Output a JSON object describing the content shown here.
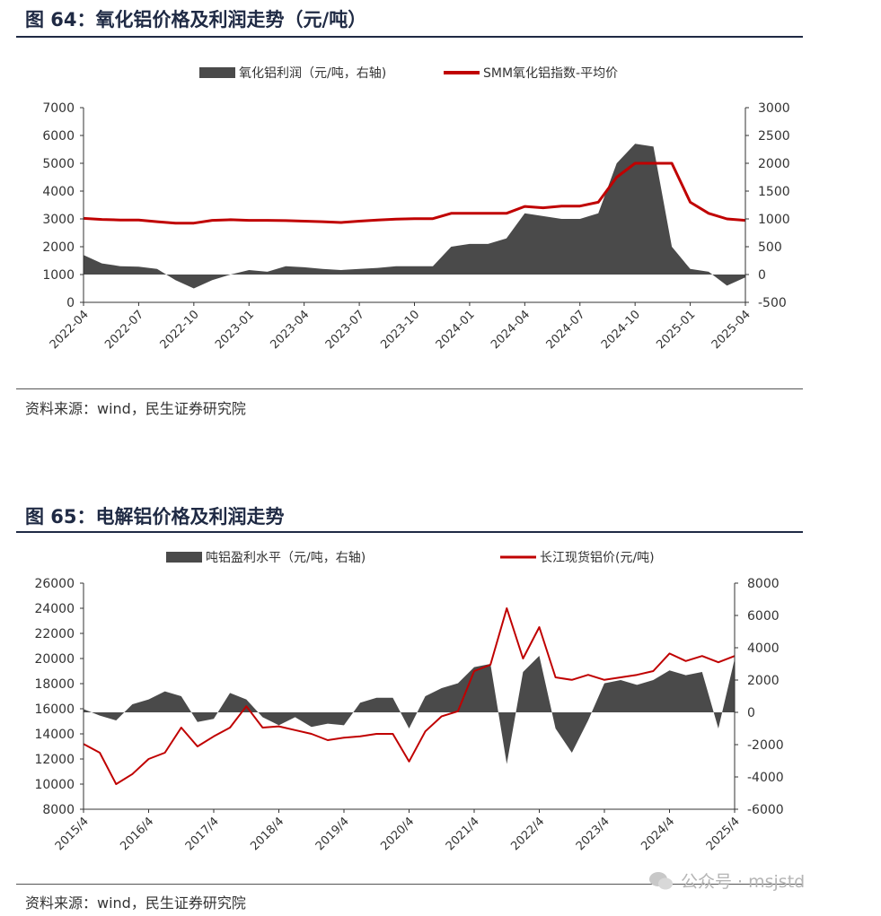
{
  "figure1": {
    "title": "图 64：氧化铝价格及利润走势（元/吨）",
    "source": "资料来源：wind，民生证券研究院"
  },
  "figure2": {
    "title": "图 65：电解铝价格及利润走势",
    "source": "资料来源：wind，民生证券研究院"
  },
  "watermark": "公众号 · msjstd",
  "colors": {
    "profit": "#4a4a4a",
    "price": "#c00000",
    "title": "#1f2a44"
  },
  "chart_data": [
    {
      "type": "area",
      "legend_position": "top",
      "grid": false,
      "series": [
        {
          "name": "氧化铝利润（元/吨，右轴)",
          "type": "area",
          "axis": "right",
          "x": [
            "2022-04",
            "2022-05",
            "2022-06",
            "2022-07",
            "2022-08",
            "2022-09",
            "2022-10",
            "2022-11",
            "2022-12",
            "2023-01",
            "2023-02",
            "2023-03",
            "2023-04",
            "2023-05",
            "2023-06",
            "2023-07",
            "2023-08",
            "2023-09",
            "2023-10",
            "2023-11",
            "2023-12",
            "2024-01",
            "2024-02",
            "2024-03",
            "2024-04",
            "2024-05",
            "2024-06",
            "2024-07",
            "2024-08",
            "2024-09",
            "2024-10",
            "2024-11",
            "2024-12",
            "2025-01",
            "2025-02",
            "2025-03",
            "2025-04"
          ],
          "values": [
            350,
            200,
            150,
            140,
            100,
            -100,
            -250,
            -100,
            0,
            80,
            50,
            150,
            130,
            100,
            80,
            100,
            120,
            150,
            150,
            150,
            500,
            550,
            550,
            650,
            1100,
            1050,
            1000,
            1000,
            1100,
            2000,
            2350,
            2300,
            500,
            100,
            50,
            -200,
            -50
          ]
        },
        {
          "name": "SMM氧化铝指数-平均价",
          "type": "line",
          "axis": "left",
          "x": [
            "2022-04",
            "2022-05",
            "2022-06",
            "2022-07",
            "2022-08",
            "2022-09",
            "2022-10",
            "2022-11",
            "2022-12",
            "2023-01",
            "2023-02",
            "2023-03",
            "2023-04",
            "2023-05",
            "2023-06",
            "2023-07",
            "2023-08",
            "2023-09",
            "2023-10",
            "2023-11",
            "2023-12",
            "2024-01",
            "2024-02",
            "2024-03",
            "2024-04",
            "2024-05",
            "2024-06",
            "2024-07",
            "2024-08",
            "2024-09",
            "2024-10",
            "2024-11",
            "2024-12",
            "2025-01",
            "2025-02",
            "2025-03",
            "2025-04"
          ],
          "values": [
            3020,
            2980,
            2960,
            2960,
            2900,
            2850,
            2850,
            2950,
            2970,
            2950,
            2950,
            2940,
            2920,
            2900,
            2870,
            2920,
            2960,
            2990,
            3010,
            3010,
            3200,
            3200,
            3200,
            3200,
            3450,
            3400,
            3460,
            3460,
            3600,
            4500,
            5000,
            5000,
            5000,
            3600,
            3200,
            3000,
            2950
          ]
        }
      ],
      "x_ticks": [
        "2022-04",
        "2022-07",
        "2022-10",
        "2023-01",
        "2023-04",
        "2023-07",
        "2023-10",
        "2024-01",
        "2024-04",
        "2024-07",
        "2024-10",
        "2025-01",
        "2025-04"
      ],
      "y_left": {
        "ticks": [
          "0",
          "1000",
          "2000",
          "3000",
          "4000",
          "5000",
          "6000",
          "7000"
        ],
        "range": [
          0,
          7000
        ]
      },
      "y_right": {
        "ticks": [
          "-500",
          "0",
          "500",
          "1000",
          "1500",
          "2000",
          "2500",
          "3000"
        ],
        "range": [
          -500,
          3000
        ]
      }
    },
    {
      "type": "area",
      "legend_position": "top",
      "grid": false,
      "series": [
        {
          "name": "吨铝盈利水平（元/吨，右轴)",
          "type": "area",
          "axis": "right",
          "x": [
            "2015-04",
            "2015-07",
            "2015-10",
            "2016-01",
            "2016-04",
            "2016-07",
            "2016-10",
            "2017-01",
            "2017-04",
            "2017-07",
            "2017-10",
            "2018-01",
            "2018-04",
            "2018-07",
            "2018-10",
            "2019-01",
            "2019-04",
            "2019-07",
            "2019-10",
            "2020-01",
            "2020-04",
            "2020-07",
            "2020-10",
            "2021-01",
            "2021-04",
            "2021-07",
            "2021-10",
            "2022-01",
            "2022-04",
            "2022-07",
            "2022-10",
            "2023-01",
            "2023-04",
            "2023-07",
            "2023-10",
            "2024-01",
            "2024-04",
            "2024-07",
            "2024-10",
            "2025-01",
            "2025-04"
          ],
          "values": [
            200,
            -200,
            -500,
            500,
            800,
            1300,
            1000,
            -600,
            -400,
            1200,
            800,
            -300,
            -800,
            -300,
            -900,
            -700,
            -800,
            600,
            900,
            900,
            -1000,
            1000,
            1500,
            1800,
            2800,
            3000,
            -3200,
            2500,
            3500,
            -1000,
            -2500,
            -500,
            1800,
            2000,
            1700,
            2000,
            2600,
            2300,
            2500,
            -1000,
            3300
          ]
        },
        {
          "name": "长江现货铝价(元/吨)",
          "type": "line",
          "axis": "left",
          "x": [
            "2015-04",
            "2015-07",
            "2015-10",
            "2016-01",
            "2016-04",
            "2016-07",
            "2016-10",
            "2017-01",
            "2017-04",
            "2017-07",
            "2017-10",
            "2018-01",
            "2018-04",
            "2018-07",
            "2018-10",
            "2019-01",
            "2019-04",
            "2019-07",
            "2019-10",
            "2020-01",
            "2020-04",
            "2020-07",
            "2020-10",
            "2021-01",
            "2021-04",
            "2021-07",
            "2021-10",
            "2022-01",
            "2022-04",
            "2022-07",
            "2022-10",
            "2023-01",
            "2023-04",
            "2023-07",
            "2023-10",
            "2024-01",
            "2024-04",
            "2024-07",
            "2024-10",
            "2025-01",
            "2025-04"
          ],
          "values": [
            13200,
            12500,
            10000,
            10800,
            12000,
            12500,
            14500,
            13000,
            13800,
            14500,
            16200,
            14500,
            14600,
            14300,
            14000,
            13500,
            13700,
            13800,
            14000,
            14000,
            11800,
            14200,
            15400,
            15800,
            19000,
            19500,
            24000,
            20000,
            22500,
            18500,
            18300,
            18700,
            18300,
            18500,
            18700,
            19000,
            20400,
            19800,
            20200,
            19700,
            20200
          ]
        }
      ],
      "x_ticks": [
        "2015/4",
        "2016/4",
        "2017/4",
        "2018/4",
        "2019/4",
        "2020/4",
        "2021/4",
        "2022/4",
        "2023/4",
        "2024/4",
        "2025/4"
      ],
      "y_left": {
        "ticks": [
          "8000",
          "10000",
          "12000",
          "14000",
          "16000",
          "18000",
          "20000",
          "22000",
          "24000",
          "26000"
        ],
        "range": [
          8000,
          26000
        ]
      },
      "y_right": {
        "ticks": [
          "-6000",
          "-4000",
          "-2000",
          "0",
          "2000",
          "4000",
          "6000",
          "8000"
        ],
        "range": [
          -6000,
          8000
        ]
      }
    }
  ]
}
